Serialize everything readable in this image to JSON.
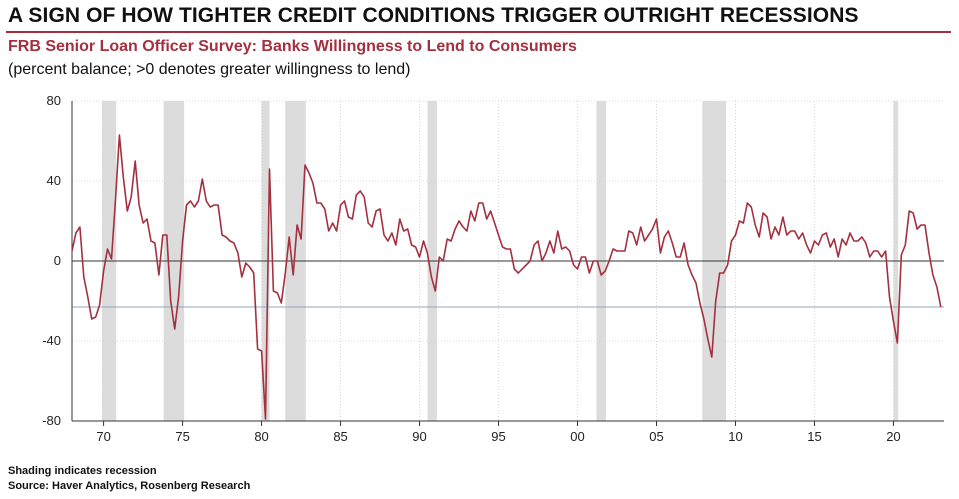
{
  "header": {
    "title": "A SIGN OF HOW TIGHTER CREDIT CONDITIONS TRIGGER OUTRIGHT RECESSIONS",
    "subtitle": "FRB Senior Loan Officer Survey: Banks Willingness to Lend to Consumers",
    "note": "(percent balance; >0 denotes greater willingness to lend)"
  },
  "footer": {
    "shading_note": "Shading indicates recession",
    "source": "Source: Haver Analytics, Rosenberg Research"
  },
  "colors": {
    "series": "#a4303f",
    "recession": "#dcdcdc",
    "zero_line": "#333333",
    "reference_line": "#8fa9c2",
    "grid": "#d8d8d8"
  },
  "chart_data": {
    "type": "line",
    "title": "FRB Senior Loan Officer Survey: Banks Willingness to Lend to Consumers",
    "ylabel": "(percent balance; >0 denotes greater willingness to lend)",
    "xlim": [
      1968.0,
      2023.2
    ],
    "ylim": [
      -80,
      80
    ],
    "grid": true,
    "x_tick_values": [
      1970,
      1975,
      1980,
      1985,
      1990,
      1995,
      2000,
      2005,
      2010,
      2015,
      2020
    ],
    "x_tick_labels": [
      "70",
      "75",
      "80",
      "85",
      "90",
      "95",
      "00",
      "05",
      "10",
      "15",
      "20"
    ],
    "y_tick_values": [
      80,
      40,
      0,
      -40,
      -80
    ],
    "y_tick_labels": [
      "80",
      "40",
      "0",
      "-40",
      "-80"
    ],
    "reference_line": -23,
    "recessions": [
      [
        1969.9,
        1970.8
      ],
      [
        1973.8,
        1975.1
      ],
      [
        1980.0,
        1980.5
      ],
      [
        1981.5,
        1982.8
      ],
      [
        1990.5,
        1991.1
      ],
      [
        2001.2,
        2001.8
      ],
      [
        2007.9,
        2009.4
      ],
      [
        2020.0,
        2020.3
      ]
    ],
    "series": [
      {
        "name": "",
        "points": [
          [
            1968.0,
            5
          ],
          [
            1968.25,
            14
          ],
          [
            1968.5,
            17
          ],
          [
            1968.75,
            -8
          ],
          [
            1969.0,
            -18
          ],
          [
            1969.25,
            -29
          ],
          [
            1969.5,
            -28
          ],
          [
            1969.75,
            -22
          ],
          [
            1970.0,
            -5
          ],
          [
            1970.25,
            6
          ],
          [
            1970.5,
            1
          ],
          [
            1970.75,
            30
          ],
          [
            1971.0,
            63
          ],
          [
            1971.25,
            42
          ],
          [
            1971.5,
            25
          ],
          [
            1971.75,
            32
          ],
          [
            1972.0,
            50
          ],
          [
            1972.25,
            28
          ],
          [
            1972.5,
            19
          ],
          [
            1972.75,
            21
          ],
          [
            1973.0,
            10
          ],
          [
            1973.25,
            9
          ],
          [
            1973.5,
            -7
          ],
          [
            1973.75,
            13
          ],
          [
            1974.0,
            13
          ],
          [
            1974.25,
            -20
          ],
          [
            1974.5,
            -34
          ],
          [
            1974.75,
            -18
          ],
          [
            1975.0,
            10
          ],
          [
            1975.25,
            28
          ],
          [
            1975.5,
            30
          ],
          [
            1975.75,
            27
          ],
          [
            1976.0,
            30
          ],
          [
            1976.25,
            41
          ],
          [
            1976.5,
            30
          ],
          [
            1976.75,
            27
          ],
          [
            1977.0,
            28
          ],
          [
            1977.25,
            28
          ],
          [
            1977.5,
            13
          ],
          [
            1977.75,
            12
          ],
          [
            1978.0,
            10
          ],
          [
            1978.25,
            9
          ],
          [
            1978.5,
            4
          ],
          [
            1978.75,
            -8
          ],
          [
            1979.0,
            -1
          ],
          [
            1979.25,
            -3
          ],
          [
            1979.5,
            -6
          ],
          [
            1979.75,
            -44
          ],
          [
            1980.0,
            -45
          ],
          [
            1980.25,
            -79
          ],
          [
            1980.5,
            46
          ],
          [
            1980.75,
            -15
          ],
          [
            1981.0,
            -16
          ],
          [
            1981.25,
            -21
          ],
          [
            1981.5,
            -6
          ],
          [
            1981.75,
            12
          ],
          [
            1982.0,
            -7
          ],
          [
            1982.25,
            18
          ],
          [
            1982.5,
            11
          ],
          [
            1982.75,
            48
          ],
          [
            1983.0,
            44
          ],
          [
            1983.25,
            39
          ],
          [
            1983.5,
            29
          ],
          [
            1983.75,
            29
          ],
          [
            1984.0,
            26
          ],
          [
            1984.25,
            15
          ],
          [
            1984.5,
            19
          ],
          [
            1984.75,
            15
          ],
          [
            1985.0,
            28
          ],
          [
            1985.25,
            30
          ],
          [
            1985.5,
            22
          ],
          [
            1985.75,
            21
          ],
          [
            1986.0,
            33
          ],
          [
            1986.25,
            35
          ],
          [
            1986.5,
            32
          ],
          [
            1986.75,
            19
          ],
          [
            1987.0,
            17
          ],
          [
            1987.25,
            25
          ],
          [
            1987.5,
            26
          ],
          [
            1987.75,
            13
          ],
          [
            1988.0,
            10
          ],
          [
            1988.25,
            14
          ],
          [
            1988.5,
            8
          ],
          [
            1988.75,
            21
          ],
          [
            1989.0,
            15
          ],
          [
            1989.25,
            16
          ],
          [
            1989.5,
            8
          ],
          [
            1989.75,
            7
          ],
          [
            1990.0,
            2
          ],
          [
            1990.25,
            10
          ],
          [
            1990.5,
            4
          ],
          [
            1990.75,
            -8
          ],
          [
            1991.0,
            -15
          ],
          [
            1991.25,
            2
          ],
          [
            1991.5,
            0
          ],
          [
            1991.75,
            11
          ],
          [
            1992.0,
            10
          ],
          [
            1992.25,
            16
          ],
          [
            1992.5,
            20
          ],
          [
            1992.75,
            17
          ],
          [
            1993.0,
            15
          ],
          [
            1993.25,
            25
          ],
          [
            1993.5,
            20
          ],
          [
            1993.75,
            29
          ],
          [
            1994.0,
            29
          ],
          [
            1994.25,
            21
          ],
          [
            1994.5,
            25
          ],
          [
            1994.75,
            19
          ],
          [
            1995.0,
            13
          ],
          [
            1995.25,
            7
          ],
          [
            1995.5,
            6
          ],
          [
            1995.75,
            6
          ],
          [
            1996.0,
            -4
          ],
          [
            1996.25,
            -6
          ],
          [
            1996.5,
            -4
          ],
          [
            1996.75,
            -2
          ],
          [
            1997.0,
            0
          ],
          [
            1997.25,
            8
          ],
          [
            1997.5,
            10
          ],
          [
            1997.75,
            0
          ],
          [
            1998.0,
            4
          ],
          [
            1998.25,
            10
          ],
          [
            1998.5,
            4
          ],
          [
            1998.75,
            15
          ],
          [
            1999.0,
            6
          ],
          [
            1999.25,
            7
          ],
          [
            1999.5,
            5
          ],
          [
            1999.75,
            -2
          ],
          [
            2000.0,
            -4
          ],
          [
            2000.25,
            2
          ],
          [
            2000.5,
            2
          ],
          [
            2000.75,
            -6
          ],
          [
            2001.0,
            0
          ],
          [
            2001.25,
            0
          ],
          [
            2001.5,
            -7
          ],
          [
            2001.75,
            -5
          ],
          [
            2002.0,
            0
          ],
          [
            2002.25,
            6
          ],
          [
            2002.5,
            5
          ],
          [
            2002.75,
            5
          ],
          [
            2003.0,
            5
          ],
          [
            2003.25,
            15
          ],
          [
            2003.5,
            14
          ],
          [
            2003.75,
            8
          ],
          [
            2004.0,
            17
          ],
          [
            2004.25,
            10
          ],
          [
            2004.5,
            13
          ],
          [
            2004.75,
            16
          ],
          [
            2005.0,
            21
          ],
          [
            2005.25,
            4
          ],
          [
            2005.5,
            12
          ],
          [
            2005.75,
            15
          ],
          [
            2006.0,
            9
          ],
          [
            2006.25,
            2
          ],
          [
            2006.5,
            2
          ],
          [
            2006.75,
            9
          ],
          [
            2007.0,
            -2
          ],
          [
            2007.25,
            -7
          ],
          [
            2007.5,
            -11
          ],
          [
            2007.75,
            -21
          ],
          [
            2008.0,
            -29
          ],
          [
            2008.25,
            -39
          ],
          [
            2008.5,
            -48
          ],
          [
            2008.75,
            -20
          ],
          [
            2009.0,
            -6
          ],
          [
            2009.25,
            -6
          ],
          [
            2009.5,
            -2
          ],
          [
            2009.75,
            10
          ],
          [
            2010.0,
            13
          ],
          [
            2010.25,
            20
          ],
          [
            2010.5,
            19
          ],
          [
            2010.75,
            29
          ],
          [
            2011.0,
            27
          ],
          [
            2011.25,
            18
          ],
          [
            2011.5,
            12
          ],
          [
            2011.75,
            24
          ],
          [
            2012.0,
            22
          ],
          [
            2012.25,
            11
          ],
          [
            2012.5,
            17
          ],
          [
            2012.75,
            13
          ],
          [
            2013.0,
            22
          ],
          [
            2013.25,
            13
          ],
          [
            2013.5,
            15
          ],
          [
            2013.75,
            15
          ],
          [
            2014.0,
            11
          ],
          [
            2014.25,
            14
          ],
          [
            2014.5,
            8
          ],
          [
            2014.75,
            4
          ],
          [
            2015.0,
            10
          ],
          [
            2015.25,
            8
          ],
          [
            2015.5,
            13
          ],
          [
            2015.75,
            14
          ],
          [
            2016.0,
            7
          ],
          [
            2016.25,
            11
          ],
          [
            2016.5,
            2
          ],
          [
            2016.75,
            11
          ],
          [
            2017.0,
            8
          ],
          [
            2017.25,
            14
          ],
          [
            2017.5,
            10
          ],
          [
            2017.75,
            10
          ],
          [
            2018.0,
            12
          ],
          [
            2018.25,
            9
          ],
          [
            2018.5,
            2
          ],
          [
            2018.75,
            5
          ],
          [
            2019.0,
            5
          ],
          [
            2019.25,
            2
          ],
          [
            2019.5,
            5
          ],
          [
            2019.75,
            -18
          ],
          [
            2020.0,
            -30
          ],
          [
            2020.25,
            -41
          ],
          [
            2020.5,
            3
          ],
          [
            2020.75,
            8
          ],
          [
            2021.0,
            25
          ],
          [
            2021.25,
            24
          ],
          [
            2021.5,
            16
          ],
          [
            2021.75,
            18
          ],
          [
            2022.0,
            18
          ],
          [
            2022.25,
            4
          ],
          [
            2022.5,
            -7
          ],
          [
            2022.75,
            -13
          ],
          [
            2023.0,
            -23
          ]
        ]
      }
    ]
  }
}
